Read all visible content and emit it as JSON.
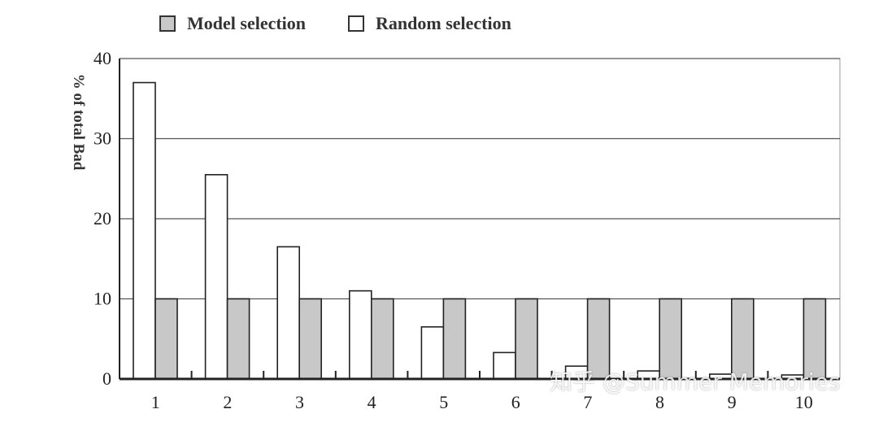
{
  "chart_data": {
    "type": "bar",
    "categories": [
      "1",
      "2",
      "3",
      "4",
      "5",
      "6",
      "7",
      "8",
      "9",
      "10"
    ],
    "series": [
      {
        "name": "Random selection",
        "values": [
          37,
          25.5,
          16.5,
          11,
          6.5,
          3.3,
          1.6,
          1.0,
          0.6,
          0.5
        ]
      },
      {
        "name": "Model selection",
        "values": [
          10,
          10,
          10,
          10,
          10,
          10,
          10,
          10,
          10,
          10
        ]
      }
    ],
    "ylabel": "% of total Bad",
    "yticks": [
      "0",
      "10",
      "20",
      "30",
      "40"
    ],
    "ylim": [
      0,
      40
    ],
    "grid": true,
    "legend_position": "top",
    "colors": {
      "model": "#c8c8c8",
      "random": "#ffffff",
      "axis": "#222222",
      "grid": "#555555"
    }
  },
  "watermark": "知乎 @Summer Memories"
}
